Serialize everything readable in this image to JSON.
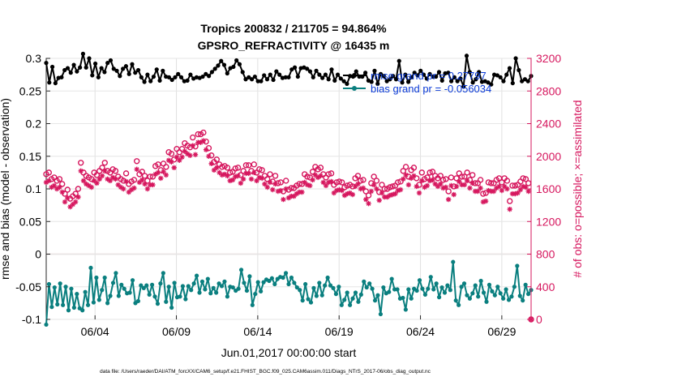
{
  "chart_data": {
    "type": "line",
    "title_line1": "Tropics 200832 / 211705 = 94.864%",
    "title_line2": "GPSRO_REFRACTIVITY @ 16435 m",
    "xlabel": "Jun.01,2017 00:00:00 start",
    "ylabel_left": "rmse and bias (model - observation)",
    "ylabel_right": "# of obs: o=possible; ×=assimilated",
    "footer": "data file: /Users/raeder/DAI/ATM_forcXX/CAM6_setup/f.e21.FHIST_BGC.f09_025.CAM6assim.011/Diags_NTrS_2017-06/obs_diag_output.nc",
    "x_range_days": [
      0.5,
      30.3
    ],
    "ylim_left": [
      -0.1,
      0.3
    ],
    "ylim_right": [
      0,
      3200
    ],
    "x_ticks": [
      {
        "day": 3.5,
        "label": "06/04"
      },
      {
        "day": 8.5,
        "label": "06/09"
      },
      {
        "day": 13.5,
        "label": "06/14"
      },
      {
        "day": 18.5,
        "label": "06/19"
      },
      {
        "day": 23.5,
        "label": "06/24"
      },
      {
        "day": 28.5,
        "label": "06/29"
      }
    ],
    "y_ticks_left": [
      {
        "value": -0.1,
        "label": "-0.1"
      },
      {
        "value": -0.05,
        "label": "-0.05"
      },
      {
        "value": 0,
        "label": "0"
      },
      {
        "value": 0.05,
        "label": "0.05"
      },
      {
        "value": 0.1,
        "label": "0.1"
      },
      {
        "value": 0.15,
        "label": "0.15"
      },
      {
        "value": 0.2,
        "label": "0.2"
      },
      {
        "value": 0.25,
        "label": "0.25"
      },
      {
        "value": 0.3,
        "label": "0.3"
      }
    ],
    "y_ticks_right": [
      {
        "value": 0,
        "label": "0"
      },
      {
        "value": 400,
        "label": "400"
      },
      {
        "value": 800,
        "label": "800"
      },
      {
        "value": 1200,
        "label": "1200"
      },
      {
        "value": 1600,
        "label": "1600"
      },
      {
        "value": 2000,
        "label": "2000"
      },
      {
        "value": 2400,
        "label": "2400"
      },
      {
        "value": 2800,
        "label": "2800"
      },
      {
        "value": 3200,
        "label": "3200"
      }
    ],
    "legend": [
      {
        "name": "rmse grand pr = 0.27797",
        "color": "#000000"
      },
      {
        "name": "bias grand pr = -0.056034",
        "color": "#0a7f7f"
      }
    ],
    "colors": {
      "rmse": "#000000",
      "bias": "#0a7f7f",
      "obs": "#d6175e",
      "legend_text": "#0a3ad6",
      "zero_line": "#c8a0a0"
    },
    "series": [
      {
        "name": "rmse",
        "axis": "left",
        "values": [
          0.293,
          0.263,
          0.287,
          0.262,
          0.27,
          0.271,
          0.282,
          0.285,
          0.278,
          0.29,
          0.28,
          0.286,
          0.307,
          0.286,
          0.3,
          0.274,
          0.292,
          0.271,
          0.285,
          0.279,
          0.293,
          0.297,
          0.284,
          0.281,
          0.273,
          0.284,
          0.288,
          0.276,
          0.291,
          0.278,
          0.282,
          0.271,
          0.264,
          0.275,
          0.265,
          0.272,
          0.283,
          0.266,
          0.281,
          0.272,
          0.271,
          0.267,
          0.271,
          0.276,
          0.271,
          0.265,
          0.266,
          0.275,
          0.269,
          0.271,
          0.27,
          0.272,
          0.276,
          0.273,
          0.279,
          0.284,
          0.289,
          0.296,
          0.29,
          0.277,
          0.285,
          0.287,
          0.297,
          0.291,
          0.279,
          0.268,
          0.271,
          0.268,
          0.272,
          0.265,
          0.265,
          0.274,
          0.268,
          0.275,
          0.267,
          0.28,
          0.275,
          0.27,
          0.271,
          0.271,
          0.283,
          0.286,
          0.272,
          0.285,
          0.286,
          0.284,
          0.28,
          0.271,
          0.281,
          0.275,
          0.27,
          0.275,
          0.268,
          0.283,
          0.266,
          0.275,
          0.269,
          0.265,
          0.261,
          0.273,
          0.272,
          0.28,
          0.272,
          0.272,
          0.278,
          0.266,
          0.264,
          0.281,
          0.261,
          0.276,
          0.273,
          0.265,
          0.268,
          0.273,
          0.268,
          0.296,
          0.263,
          0.275,
          0.264,
          0.271,
          0.278,
          0.274,
          0.281,
          0.275,
          0.269,
          0.276,
          0.272,
          0.272,
          0.279,
          0.266,
          0.277,
          0.278,
          0.265,
          0.271,
          0.265,
          0.269,
          0.257,
          0.304,
          0.279,
          0.263,
          0.268,
          0.279,
          0.264,
          0.265,
          0.263,
          0.26,
          0.275,
          0.274,
          0.271,
          0.265,
          0.275,
          0.285,
          0.262,
          0.3,
          0.282,
          0.265,
          0.268,
          0.265,
          0.273
        ]
      },
      {
        "name": "bias",
        "axis": "left",
        "values": [
          -0.108,
          -0.046,
          -0.081,
          -0.051,
          -0.077,
          -0.045,
          -0.078,
          -0.05,
          -0.086,
          -0.053,
          -0.082,
          -0.061,
          -0.083,
          -0.086,
          -0.058,
          -0.078,
          -0.021,
          -0.074,
          -0.036,
          -0.07,
          -0.055,
          -0.036,
          -0.075,
          -0.064,
          -0.044,
          -0.029,
          -0.064,
          -0.047,
          -0.053,
          -0.06,
          -0.059,
          -0.04,
          -0.075,
          -0.072,
          -0.048,
          -0.052,
          -0.048,
          -0.062,
          -0.047,
          -0.065,
          -0.076,
          -0.045,
          -0.029,
          -0.073,
          -0.05,
          -0.082,
          -0.044,
          -0.066,
          -0.065,
          -0.049,
          -0.069,
          -0.049,
          -0.055,
          -0.045,
          -0.033,
          -0.059,
          -0.042,
          -0.054,
          -0.038,
          -0.06,
          -0.052,
          -0.059,
          -0.045,
          -0.049,
          -0.042,
          -0.065,
          -0.05,
          -0.051,
          -0.056,
          -0.053,
          -0.024,
          -0.044,
          -0.056,
          -0.034,
          -0.078,
          -0.061,
          -0.043,
          -0.057,
          -0.043,
          -0.039,
          -0.041,
          -0.037,
          -0.046,
          -0.038,
          -0.035,
          -0.036,
          -0.029,
          -0.046,
          -0.036,
          -0.044,
          -0.051,
          -0.055,
          -0.071,
          -0.046,
          -0.069,
          -0.074,
          -0.052,
          -0.064,
          -0.044,
          -0.063,
          -0.048,
          -0.036,
          -0.048,
          -0.052,
          -0.061,
          -0.05,
          -0.078,
          -0.07,
          -0.059,
          -0.078,
          -0.068,
          -0.059,
          -0.073,
          -0.062,
          -0.042,
          -0.051,
          -0.045,
          -0.053,
          -0.071,
          -0.063,
          -0.092,
          -0.051,
          -0.06,
          -0.058,
          -0.038,
          -0.054,
          -0.054,
          -0.068,
          -0.067,
          -0.085,
          -0.054,
          -0.068,
          -0.053,
          -0.056,
          -0.04,
          -0.053,
          -0.062,
          -0.053,
          -0.035,
          -0.054,
          -0.045,
          -0.066,
          -0.051,
          -0.059,
          -0.048,
          -0.055,
          -0.012,
          -0.071,
          -0.078,
          -0.05,
          -0.045,
          -0.063,
          -0.068,
          -0.06,
          -0.048,
          -0.065,
          -0.041,
          -0.059,
          -0.073,
          -0.047,
          -0.057,
          -0.063,
          -0.05,
          -0.06,
          -0.068,
          -0.054,
          -0.07,
          -0.065,
          -0.05,
          -0.018,
          -0.064,
          -0.071,
          -0.047,
          -0.061,
          -0.055
        ]
      },
      {
        "name": "obs_possible",
        "axis": "right",
        "marker": "circle",
        "values": [
          1780,
          1800,
          1720,
          1740,
          1700,
          1720,
          1660,
          1540,
          1590,
          1480,
          1510,
          1540,
          1600,
          1920,
          1800,
          1760,
          1740,
          1720,
          1800,
          1770,
          1820,
          1860,
          1920,
          1820,
          1800,
          1840,
          1820,
          1750,
          1720,
          1700,
          1790,
          1660,
          1690,
          1710,
          1940,
          1780,
          1810,
          1760,
          1700,
          1750,
          1750,
          1880,
          1900,
          1830,
          1910,
          1870,
          2050,
          2030,
          1960,
          2090,
          2050,
          2090,
          2160,
          2130,
          2110,
          2230,
          2120,
          2270,
          2270,
          2290,
          2180,
          2100,
          2010,
          1930,
          1960,
          1900,
          1870,
          1880,
          1860,
          1800,
          1810,
          1850,
          1860,
          1770,
          1820,
          1890,
          1890,
          1820,
          1900,
          1800,
          1840,
          1830,
          1760,
          1720,
          1780,
          1690,
          1760,
          1670,
          1680,
          1570,
          1700,
          1590,
          1610,
          1610,
          1640,
          1660,
          1660,
          1780,
          1750,
          1740,
          1810,
          1870,
          1840,
          1860,
          1780,
          1740,
          1780,
          1790,
          1650,
          1680,
          1690,
          1680,
          1620,
          1640,
          1650,
          1630,
          1730,
          1760,
          1700,
          1710,
          1570,
          1520,
          1670,
          1750,
          1700,
          1560,
          1650,
          1600,
          1600,
          1620,
          1630,
          1640,
          1680,
          1690,
          1820,
          1870,
          1750,
          1830,
          1860,
          1730,
          1650,
          1800,
          1720,
          1740,
          1800,
          1810,
          1760,
          1730,
          1760,
          1710,
          1720,
          1570,
          1740,
          1630,
          1730,
          1790,
          1750,
          1750,
          1800,
          1710,
          1770,
          1670,
          1670,
          1710,
          1540,
          1550,
          1680,
          1670,
          1670,
          1710,
          1730,
          1680,
          1730,
          1700,
          1450,
          1640,
          1640,
          1650,
          1690,
          1730,
          1720,
          1670,
          0
        ]
      },
      {
        "name": "obs_assimilated",
        "axis": "right",
        "marker": "x",
        "values": [
          1680,
          1700,
          1620,
          1640,
          1600,
          1620,
          1560,
          1440,
          1490,
          1380,
          1410,
          1440,
          1500,
          1820,
          1700,
          1660,
          1640,
          1620,
          1700,
          1670,
          1720,
          1760,
          1820,
          1720,
          1700,
          1740,
          1720,
          1650,
          1620,
          1600,
          1690,
          1560,
          1590,
          1610,
          1840,
          1680,
          1710,
          1660,
          1600,
          1650,
          1650,
          1780,
          1800,
          1730,
          1810,
          1770,
          1950,
          1930,
          1860,
          1990,
          1950,
          1990,
          2060,
          2030,
          2010,
          2130,
          2020,
          2170,
          2170,
          2190,
          2080,
          2000,
          1910,
          1830,
          1860,
          1800,
          1770,
          1780,
          1760,
          1700,
          1710,
          1750,
          1760,
          1670,
          1720,
          1790,
          1790,
          1720,
          1800,
          1700,
          1740,
          1730,
          1660,
          1620,
          1680,
          1590,
          1660,
          1570,
          1580,
          1470,
          1600,
          1490,
          1510,
          1510,
          1540,
          1560,
          1560,
          1680,
          1650,
          1640,
          1710,
          1770,
          1740,
          1760,
          1680,
          1640,
          1680,
          1690,
          1550,
          1580,
          1590,
          1580,
          1520,
          1540,
          1550,
          1530,
          1630,
          1660,
          1600,
          1610,
          1470,
          1420,
          1570,
          1650,
          1600,
          1460,
          1550,
          1500,
          1500,
          1520,
          1530,
          1540,
          1580,
          1590,
          1720,
          1770,
          1650,
          1730,
          1760,
          1630,
          1550,
          1700,
          1620,
          1640,
          1700,
          1710,
          1660,
          1630,
          1660,
          1610,
          1620,
          1470,
          1640,
          1530,
          1630,
          1690,
          1650,
          1650,
          1700,
          1610,
          1670,
          1570,
          1570,
          1610,
          1440,
          1450,
          1580,
          1570,
          1570,
          1610,
          1630,
          1580,
          1630,
          1600,
          1350,
          1540,
          1540,
          1550,
          1590,
          1630,
          1620,
          1570,
          0
        ]
      }
    ]
  }
}
